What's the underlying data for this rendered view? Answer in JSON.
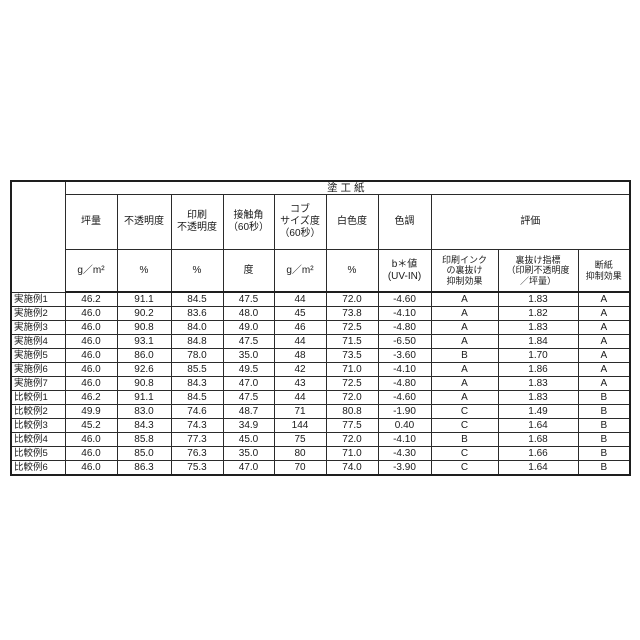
{
  "table": {
    "title": "塗工紙",
    "header_row": [
      "坪量",
      "不透明度",
      "印刷\n不透明度",
      "接触角\n（60秒）",
      "コブ\nサイズ度\n（60秒）",
      "白色度",
      "色調"
    ],
    "evaluation_label": "評価",
    "unit_row": [
      "g／m²",
      "%",
      "%",
      "度",
      "g／m²",
      "%",
      "b＊値\n(UV-IN)"
    ],
    "evaluation_subheaders": [
      "印刷インク\nの裏抜け\n抑制効果",
      "裏抜け指標\n（印刷不透明度\n／坪量）",
      "断紙\n抑制効果"
    ],
    "rows": [
      {
        "label": "実施例1",
        "values": [
          "46.2",
          "91.1",
          "84.5",
          "47.5",
          "44",
          "72.0",
          "-4.60",
          "A",
          "1.83",
          "A"
        ]
      },
      {
        "label": "実施例2",
        "values": [
          "46.0",
          "90.2",
          "83.6",
          "48.0",
          "45",
          "73.8",
          "-4.10",
          "A",
          "1.82",
          "A"
        ]
      },
      {
        "label": "実施例3",
        "values": [
          "46.0",
          "90.8",
          "84.0",
          "49.0",
          "46",
          "72.5",
          "-4.80",
          "A",
          "1.83",
          "A"
        ]
      },
      {
        "label": "実施例4",
        "values": [
          "46.0",
          "93.1",
          "84.8",
          "47.5",
          "44",
          "71.5",
          "-6.50",
          "A",
          "1.84",
          "A"
        ]
      },
      {
        "label": "実施例5",
        "values": [
          "46.0",
          "86.0",
          "78.0",
          "35.0",
          "48",
          "73.5",
          "-3.60",
          "B",
          "1.70",
          "A"
        ]
      },
      {
        "label": "実施例6",
        "values": [
          "46.0",
          "92.6",
          "85.5",
          "49.5",
          "42",
          "71.0",
          "-4.10",
          "A",
          "1.86",
          "A"
        ]
      },
      {
        "label": "実施例7",
        "values": [
          "46.0",
          "90.8",
          "84.3",
          "47.0",
          "43",
          "72.5",
          "-4.80",
          "A",
          "1.83",
          "A"
        ]
      },
      {
        "label": "比較例1",
        "values": [
          "46.2",
          "91.1",
          "84.5",
          "47.5",
          "44",
          "72.0",
          "-4.60",
          "A",
          "1.83",
          "B"
        ]
      },
      {
        "label": "比較例2",
        "values": [
          "49.9",
          "83.0",
          "74.6",
          "48.7",
          "71",
          "80.8",
          "-1.90",
          "C",
          "1.49",
          "B"
        ]
      },
      {
        "label": "比較例3",
        "values": [
          "45.2",
          "84.3",
          "74.3",
          "34.9",
          "144",
          "77.5",
          "0.40",
          "C",
          "1.64",
          "B"
        ]
      },
      {
        "label": "比較例4",
        "values": [
          "46.0",
          "85.8",
          "77.3",
          "45.0",
          "75",
          "72.0",
          "-4.10",
          "B",
          "1.68",
          "B"
        ]
      },
      {
        "label": "比較例5",
        "values": [
          "46.0",
          "85.0",
          "76.3",
          "35.0",
          "80",
          "71.0",
          "-4.30",
          "C",
          "1.66",
          "B"
        ]
      },
      {
        "label": "比較例6",
        "values": [
          "46.0",
          "86.3",
          "75.3",
          "47.0",
          "70",
          "74.0",
          "-3.90",
          "C",
          "1.64",
          "B"
        ]
      }
    ]
  }
}
